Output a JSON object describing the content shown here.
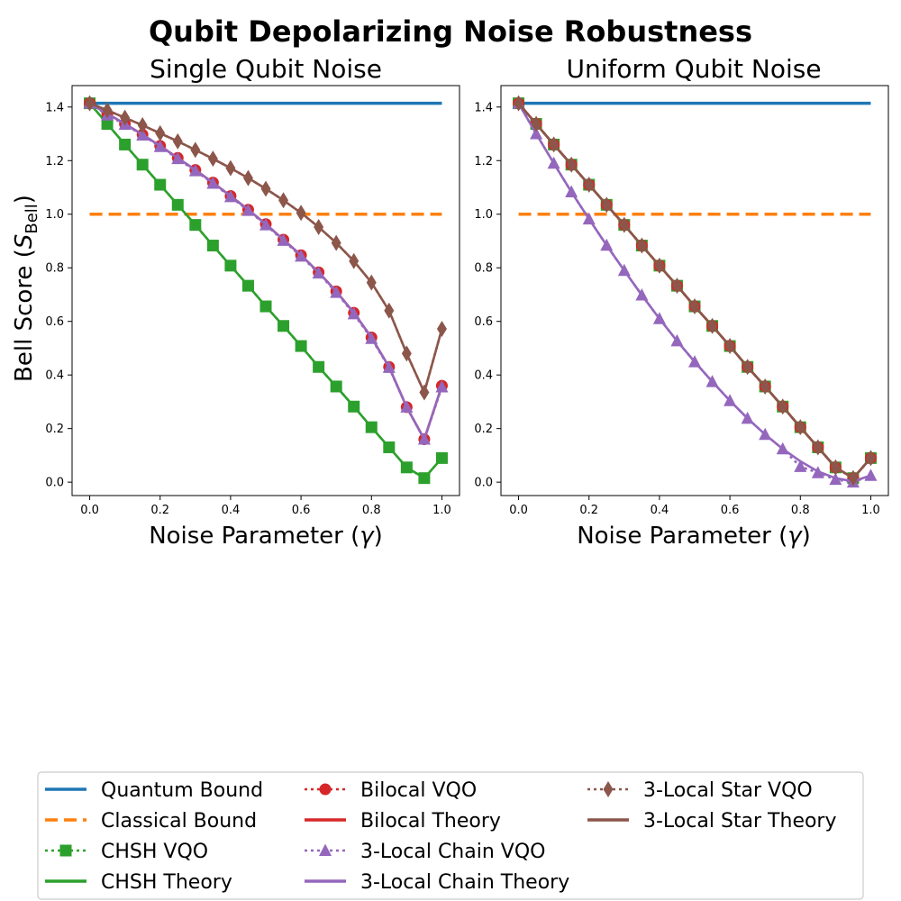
{
  "figure": {
    "suptitle": "Qubit Depolarizing Noise Robustness",
    "ylabel_main": "Bell Score (",
    "ylabel_sym": "S",
    "ylabel_sub": "Bell",
    "ylabel_end": ")",
    "xlabel_main": "Noise Parameter (",
    "xlabel_sym": "γ",
    "xlabel_end": ")"
  },
  "legend": [
    {
      "label": "Quantum Bound",
      "color": "#1f77b4",
      "style": "solid",
      "marker": "none"
    },
    {
      "label": "Classical Bound",
      "color": "#ff7f0e",
      "style": "dashed",
      "marker": "none"
    },
    {
      "label": "CHSH VQO",
      "color": "#2ca02c",
      "style": "dotted",
      "marker": "square"
    },
    {
      "label": "CHSH Theory",
      "color": "#2ca02c",
      "style": "solid",
      "marker": "none"
    },
    {
      "label": "Bilocal VQO",
      "color": "#d62728",
      "style": "dotted",
      "marker": "circle"
    },
    {
      "label": "Bilocal Theory",
      "color": "#d62728",
      "style": "solid",
      "marker": "none"
    },
    {
      "label": "3-Local Chain VQO",
      "color": "#9467bd",
      "style": "dotted",
      "marker": "triangle"
    },
    {
      "label": "3-Local Chain Theory",
      "color": "#9467bd",
      "style": "solid",
      "marker": "none"
    },
    {
      "label": "3-Local Star VQO",
      "color": "#8c564b",
      "style": "dotted",
      "marker": "diamond"
    },
    {
      "label": "3-Local Star Theory",
      "color": "#8c564b",
      "style": "solid",
      "marker": "none"
    }
  ],
  "chart_data": [
    {
      "type": "line",
      "title": "Single Qubit Noise",
      "xlabel": "Noise Parameter (γ)",
      "ylabel": "Bell Score (S_Bell)",
      "xlim": [
        -0.05,
        1.05
      ],
      "ylim": [
        -0.05,
        1.48
      ],
      "xticks": [
        "0.0",
        "0.2",
        "0.4",
        "0.6",
        "0.8",
        "1.0"
      ],
      "yticks": [
        "0.0",
        "0.2",
        "0.4",
        "0.6",
        "0.8",
        "1.0",
        "1.2",
        "1.4"
      ],
      "x": [
        0.0,
        0.05,
        0.1,
        0.15,
        0.2,
        0.25,
        0.3,
        0.35,
        0.4,
        0.45,
        0.5,
        0.55,
        0.6,
        0.65,
        0.7,
        0.75,
        0.8,
        0.85,
        0.9,
        0.95,
        1.0
      ],
      "series": [
        {
          "name": "Quantum Bound",
          "values": [
            1.414,
            1.414,
            1.414,
            1.414,
            1.414,
            1.414,
            1.414,
            1.414,
            1.414,
            1.414,
            1.414,
            1.414,
            1.414,
            1.414,
            1.414,
            1.414,
            1.414,
            1.414,
            1.414,
            1.414,
            1.414
          ]
        },
        {
          "name": "Classical Bound",
          "values": [
            1.0,
            1.0,
            1.0,
            1.0,
            1.0,
            1.0,
            1.0,
            1.0,
            1.0,
            1.0,
            1.0,
            1.0,
            1.0,
            1.0,
            1.0,
            1.0,
            1.0,
            1.0,
            1.0,
            1.0,
            1.0
          ]
        },
        {
          "name": "CHSH VQO",
          "values": [
            1.414,
            1.337,
            1.26,
            1.185,
            1.11,
            1.035,
            0.96,
            0.883,
            0.808,
            0.733,
            0.656,
            0.583,
            0.508,
            0.43,
            0.357,
            0.282,
            0.205,
            0.13,
            0.055,
            0.015,
            0.09
          ]
        },
        {
          "name": "CHSH Theory",
          "values": [
            1.414,
            1.337,
            1.26,
            1.185,
            1.11,
            1.035,
            0.96,
            0.883,
            0.808,
            0.733,
            0.656,
            0.583,
            0.508,
            0.43,
            0.357,
            0.282,
            0.205,
            0.13,
            0.055,
            0.015,
            0.09
          ]
        },
        {
          "name": "Bilocal VQO",
          "values": [
            1.414,
            1.375,
            1.337,
            1.297,
            1.255,
            1.21,
            1.165,
            1.118,
            1.068,
            1.017,
            0.963,
            0.905,
            0.847,
            0.783,
            0.712,
            0.632,
            0.54,
            0.43,
            0.28,
            0.16,
            0.36
          ]
        },
        {
          "name": "Bilocal Theory",
          "values": [
            1.414,
            1.375,
            1.337,
            1.297,
            1.255,
            1.21,
            1.165,
            1.118,
            1.068,
            1.017,
            0.963,
            0.905,
            0.847,
            0.783,
            0.712,
            0.632,
            0.54,
            0.43,
            0.28,
            0.16,
            0.36
          ]
        },
        {
          "name": "3-Local Chain VQO",
          "values": [
            1.414,
            1.37,
            1.335,
            1.295,
            1.252,
            1.207,
            1.162,
            1.115,
            1.065,
            1.014,
            0.96,
            0.902,
            0.843,
            0.78,
            0.708,
            0.628,
            0.536,
            0.428,
            0.28,
            0.16,
            0.355
          ]
        },
        {
          "name": "3-Local Chain Theory",
          "values": [
            1.414,
            1.375,
            1.337,
            1.297,
            1.255,
            1.21,
            1.165,
            1.118,
            1.068,
            1.017,
            0.963,
            0.905,
            0.847,
            0.783,
            0.712,
            0.632,
            0.54,
            0.43,
            0.28,
            0.16,
            0.36
          ]
        },
        {
          "name": "3-Local Star VQO",
          "values": [
            1.414,
            1.388,
            1.36,
            1.332,
            1.302,
            1.272,
            1.24,
            1.207,
            1.172,
            1.135,
            1.095,
            1.052,
            1.005,
            0.952,
            0.893,
            0.825,
            0.745,
            0.64,
            0.48,
            0.335,
            0.572
          ]
        },
        {
          "name": "3-Local Star Theory",
          "values": [
            1.414,
            1.388,
            1.36,
            1.332,
            1.302,
            1.272,
            1.24,
            1.207,
            1.172,
            1.135,
            1.095,
            1.052,
            1.005,
            0.952,
            0.893,
            0.825,
            0.745,
            0.64,
            0.48,
            0.335,
            0.572
          ]
        }
      ]
    },
    {
      "type": "line",
      "title": "Uniform Qubit Noise",
      "xlabel": "Noise Parameter (γ)",
      "ylabel": "",
      "xlim": [
        -0.05,
        1.05
      ],
      "ylim": [
        -0.05,
        1.48
      ],
      "xticks": [
        "0.0",
        "0.2",
        "0.4",
        "0.6",
        "0.8",
        "1.0"
      ],
      "yticks": [
        "0.0",
        "0.2",
        "0.4",
        "0.6",
        "0.8",
        "1.0",
        "1.2",
        "1.4"
      ],
      "x": [
        0.0,
        0.05,
        0.1,
        0.15,
        0.2,
        0.25,
        0.3,
        0.35,
        0.4,
        0.45,
        0.5,
        0.55,
        0.6,
        0.65,
        0.7,
        0.75,
        0.8,
        0.85,
        0.9,
        0.95,
        1.0
      ],
      "series": [
        {
          "name": "Quantum Bound",
          "values": [
            1.414,
            1.414,
            1.414,
            1.414,
            1.414,
            1.414,
            1.414,
            1.414,
            1.414,
            1.414,
            1.414,
            1.414,
            1.414,
            1.414,
            1.414,
            1.414,
            1.414,
            1.414,
            1.414,
            1.414,
            1.414
          ]
        },
        {
          "name": "Classical Bound",
          "values": [
            1.0,
            1.0,
            1.0,
            1.0,
            1.0,
            1.0,
            1.0,
            1.0,
            1.0,
            1.0,
            1.0,
            1.0,
            1.0,
            1.0,
            1.0,
            1.0,
            1.0,
            1.0,
            1.0,
            1.0,
            1.0
          ]
        },
        {
          "name": "CHSH VQO",
          "values": [
            1.414,
            1.337,
            1.26,
            1.185,
            1.11,
            1.035,
            0.96,
            0.883,
            0.808,
            0.733,
            0.656,
            0.583,
            0.508,
            0.43,
            0.357,
            0.282,
            0.205,
            0.13,
            0.055,
            0.015,
            0.09
          ]
        },
        {
          "name": "CHSH Theory",
          "values": [
            1.414,
            1.337,
            1.26,
            1.185,
            1.11,
            1.035,
            0.96,
            0.883,
            0.808,
            0.733,
            0.656,
            0.583,
            0.508,
            0.43,
            0.357,
            0.282,
            0.205,
            0.13,
            0.055,
            0.015,
            0.09
          ]
        },
        {
          "name": "Bilocal VQO",
          "values": [
            1.414,
            1.337,
            1.26,
            1.185,
            1.11,
            1.035,
            0.96,
            0.883,
            0.808,
            0.733,
            0.656,
            0.583,
            0.508,
            0.43,
            0.357,
            0.282,
            0.205,
            0.13,
            0.055,
            0.015,
            0.09
          ]
        },
        {
          "name": "Bilocal Theory",
          "values": [
            1.414,
            1.337,
            1.26,
            1.185,
            1.11,
            1.035,
            0.96,
            0.883,
            0.808,
            0.733,
            0.656,
            0.583,
            0.508,
            0.43,
            0.357,
            0.282,
            0.205,
            0.13,
            0.055,
            0.015,
            0.09
          ]
        },
        {
          "name": "3-Local Chain VQO",
          "values": [
            1.414,
            1.3,
            1.19,
            1.083,
            0.982,
            0.884,
            0.79,
            0.698,
            0.61,
            0.527,
            0.449,
            0.375,
            0.304,
            0.238,
            0.178,
            0.124,
            0.058,
            0.035,
            0.01,
            0.0,
            0.025
          ]
        },
        {
          "name": "3-Local Chain Theory",
          "values": [
            1.414,
            1.3,
            1.19,
            1.083,
            0.982,
            0.884,
            0.79,
            0.698,
            0.61,
            0.527,
            0.449,
            0.375,
            0.304,
            0.238,
            0.178,
            0.124,
            0.078,
            0.04,
            0.015,
            0.003,
            0.025
          ]
        },
        {
          "name": "3-Local Star VQO",
          "values": [
            1.414,
            1.337,
            1.26,
            1.185,
            1.11,
            1.035,
            0.96,
            0.883,
            0.808,
            0.733,
            0.656,
            0.583,
            0.508,
            0.43,
            0.357,
            0.282,
            0.205,
            0.13,
            0.055,
            0.015,
            0.09
          ]
        },
        {
          "name": "3-Local Star Theory",
          "values": [
            1.414,
            1.337,
            1.26,
            1.185,
            1.11,
            1.035,
            0.96,
            0.883,
            0.808,
            0.733,
            0.656,
            0.583,
            0.508,
            0.43,
            0.357,
            0.282,
            0.205,
            0.13,
            0.055,
            0.015,
            0.09
          ]
        }
      ]
    }
  ]
}
